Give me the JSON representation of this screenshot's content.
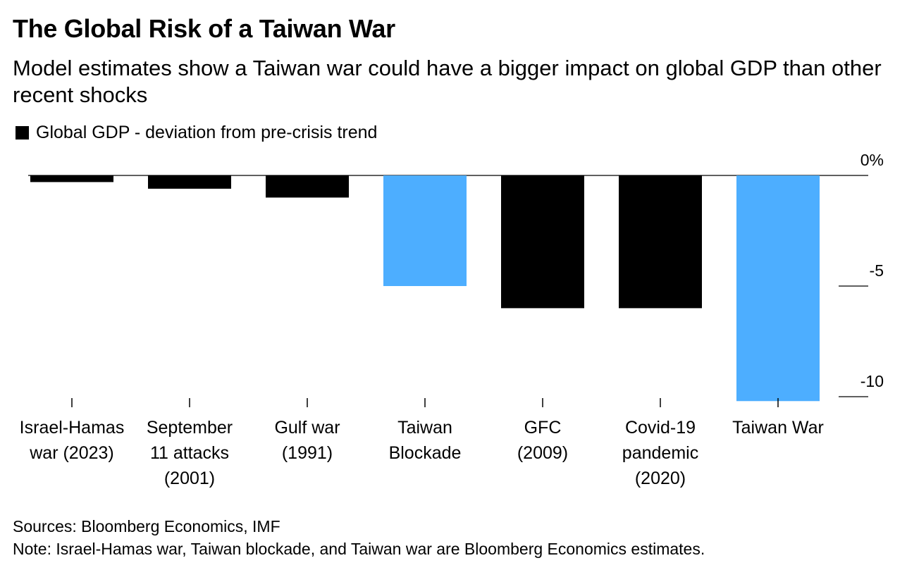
{
  "chart_data": {
    "type": "bar",
    "title": "The Global Risk of a Taiwan War",
    "subtitle": "Model estimates show a Taiwan war could have a bigger impact on global GDP than other recent shocks",
    "legend": "Global GDP - deviation from pre-crisis trend",
    "categories": [
      [
        "Israel-Hamas",
        "war (2023)"
      ],
      [
        "September",
        "11 attacks",
        "(2001)"
      ],
      [
        "Gulf war",
        "(1991)"
      ],
      [
        "Taiwan",
        "Blockade"
      ],
      [
        "GFC",
        "(2009)"
      ],
      [
        "Covid-19",
        "pandemic",
        "(2020)"
      ],
      [
        "Taiwan War"
      ]
    ],
    "values": [
      -0.3,
      -0.6,
      -1.0,
      -5.0,
      -6.0,
      -6.0,
      -10.2
    ],
    "colors": [
      "#000000",
      "#000000",
      "#000000",
      "#4daeff",
      "#000000",
      "#000000",
      "#4daeff"
    ],
    "yticks": [
      {
        "value": 0,
        "label": "0%"
      },
      {
        "value": -5,
        "label": "-5"
      },
      {
        "value": -10,
        "label": "-10"
      }
    ],
    "ylim": [
      -10.2,
      0
    ],
    "legend_position": "top-left",
    "grid": false
  },
  "footer": {
    "sources": "Sources: Bloomberg Economics, IMF",
    "note": "Note: Israel-Hamas war, Taiwan blockade, and Taiwan war are Bloomberg Economics estimates."
  }
}
